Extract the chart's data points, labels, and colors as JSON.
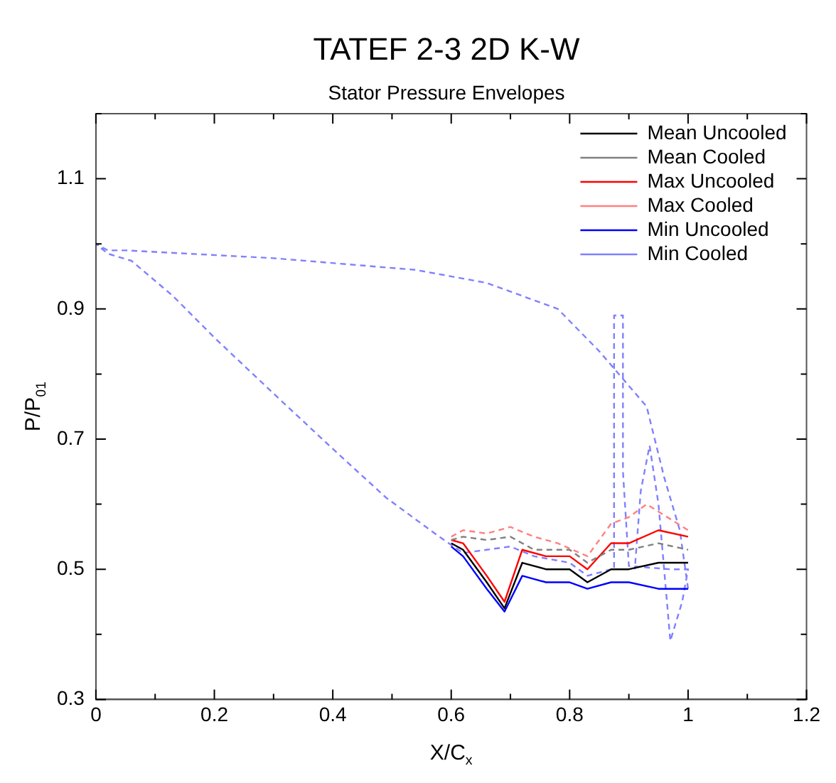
{
  "chart_data": {
    "type": "line",
    "title": "TATEF 2-3 2D K-W",
    "subtitle": "Stator Pressure Envelopes",
    "xlabel": "X/C$_{x}$",
    "ylabel": "P/P$_{01}$",
    "xlim": [
      0,
      1.2
    ],
    "ylim": [
      0.3,
      1.2
    ],
    "xticks": [
      0,
      {
        "value": 0.1,
        "label": null
      },
      0.2,
      {
        "value": 0.3,
        "label": null
      },
      0.4,
      {
        "value": 0.5,
        "label": null
      },
      0.6,
      {
        "value": 0.7,
        "label": null
      },
      0.8,
      {
        "value": 0.9,
        "label": null
      },
      1,
      {
        "value": 1.1,
        "label": null
      },
      1.2
    ],
    "yticks": [
      0.3,
      {
        "value": 0.4,
        "label": null
      },
      0.5,
      {
        "value": 0.6,
        "label": null
      },
      0.7,
      {
        "value": 0.8,
        "label": null
      },
      0.9,
      {
        "value": 1.0,
        "label": null
      },
      1.1,
      {
        "value": 1.2,
        "label": null
      }
    ],
    "grid": false,
    "legend": "top right",
    "marker": "none",
    "series": [
      {
        "name": "Mean Uncooled",
        "color": "#000000",
        "line_style": "solid",
        "x": [
          0.6,
          0.62,
          0.66,
          0.69,
          0.72,
          0.76,
          0.8,
          0.83,
          0.87,
          0.9,
          0.95,
          1.0
        ],
        "values": [
          0.54,
          0.53,
          0.48,
          0.44,
          0.51,
          0.5,
          0.5,
          0.48,
          0.5,
          0.5,
          0.51,
          0.51
        ]
      },
      {
        "name": "Mean Cooled",
        "color": "#808080",
        "line_style": "dashed",
        "x": [
          0.6,
          0.62,
          0.66,
          0.7,
          0.74,
          0.8,
          0.83,
          0.87,
          0.9,
          0.95,
          1.0
        ],
        "values": [
          0.545,
          0.55,
          0.545,
          0.55,
          0.53,
          0.53,
          0.51,
          0.53,
          0.53,
          0.54,
          0.53
        ]
      },
      {
        "name": "Max Uncooled",
        "color": "#ff0000",
        "line_style": "solid",
        "x": [
          0.6,
          0.62,
          0.66,
          0.69,
          0.72,
          0.76,
          0.8,
          0.83,
          0.87,
          0.9,
          0.95,
          1.0
        ],
        "values": [
          0.545,
          0.54,
          0.49,
          0.45,
          0.53,
          0.52,
          0.52,
          0.5,
          0.54,
          0.54,
          0.56,
          0.55
        ]
      },
      {
        "name": "Max Cooled",
        "color": "#ff8080",
        "line_style": "dashed",
        "x": [
          0.6,
          0.62,
          0.66,
          0.7,
          0.74,
          0.78,
          0.83,
          0.87,
          0.9,
          0.93,
          1.0
        ],
        "values": [
          0.55,
          0.56,
          0.555,
          0.565,
          0.55,
          0.54,
          0.52,
          0.57,
          0.58,
          0.6,
          0.56
        ]
      },
      {
        "name": "Min Uncooled",
        "color": "#0000ff",
        "line_style": "solid",
        "x": [
          0.6,
          0.62,
          0.66,
          0.69,
          0.72,
          0.76,
          0.8,
          0.83,
          0.87,
          0.9,
          0.95,
          1.0
        ],
        "values": [
          0.535,
          0.52,
          0.47,
          0.435,
          0.49,
          0.48,
          0.48,
          0.47,
          0.48,
          0.48,
          0.47,
          0.47
        ]
      },
      {
        "name": "Min Cooled",
        "color": "#8080ff",
        "line_style": "dashed",
        "x": [
          1.0,
          0.986,
          0.96,
          0.93,
          0.85,
          0.78,
          0.66,
          0.54,
          0.3,
          0.05,
          0.02,
          0,
          0.02,
          0.06,
          0.13,
          0.2,
          0.3,
          0.4,
          0.49,
          0.58,
          0.62,
          0.66,
          0.7,
          0.74,
          0.8,
          0.83,
          0.87,
          0.875,
          0.875,
          0.89,
          0.89,
          0.9,
          0.97,
          1.0,
          0.99,
          0.97,
          0.95,
          0.935,
          0.92,
          0.91
        ],
        "values": [
          0.47,
          0.56,
          0.64,
          0.75,
          0.835,
          0.9,
          0.94,
          0.96,
          0.978,
          0.99,
          0.99,
          1.0,
          0.985,
          0.974,
          0.92,
          0.856,
          0.77,
          0.685,
          0.61,
          0.55,
          0.525,
          0.53,
          0.535,
          0.52,
          0.51,
          0.49,
          0.5,
          0.5,
          0.89,
          0.89,
          0.65,
          0.505,
          0.5,
          0.5,
          0.45,
          0.39,
          0.6,
          0.69,
          0.62,
          0.5
        ]
      }
    ]
  }
}
